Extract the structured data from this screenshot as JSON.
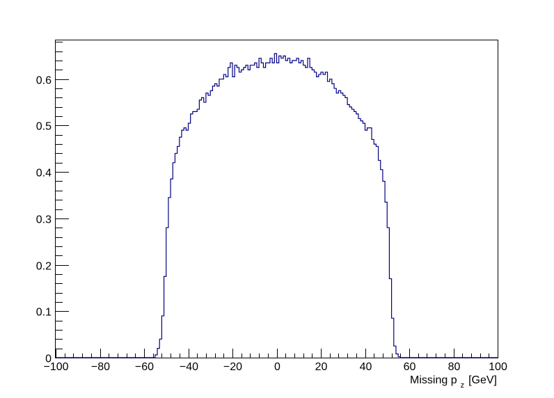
{
  "chart_data": {
    "type": "histogram",
    "title": "",
    "xlabel": {
      "main": "Missing p",
      "subscript": "z",
      "unit": "[GeV]"
    },
    "ylabel": "",
    "xlim": [
      -100,
      100
    ],
    "ylim": [
      0,
      0.685
    ],
    "x_major_ticks": [
      -100,
      -80,
      -60,
      -40,
      -20,
      0,
      20,
      40,
      60,
      80,
      100
    ],
    "x_tick_labels": [
      "−100",
      "−80",
      "−60",
      "−40",
      "−20",
      "0",
      "20",
      "40",
      "60",
      "80",
      "100"
    ],
    "x_minor_step": 4,
    "y_major_ticks": [
      0,
      0.1,
      0.2,
      0.3,
      0.4,
      0.5,
      0.6
    ],
    "y_tick_labels": [
      "0",
      "0.1",
      "0.2",
      "0.3",
      "0.4",
      "0.5",
      "0.6"
    ],
    "y_minor_step": 0.02,
    "grid": false,
    "legend": "none",
    "line_color": "#000080",
    "bin_width": 1,
    "bins_x_low": [
      -55,
      -54,
      -53,
      -52,
      -51,
      -50,
      -49,
      -48,
      -47,
      -46,
      -45,
      -44,
      -43,
      -42,
      -41,
      -40,
      -39,
      -38,
      -37,
      -36,
      -35,
      -34,
      -33,
      -32,
      -31,
      -30,
      -29,
      -28,
      -27,
      -26,
      -25,
      -24,
      -23,
      -22,
      -21,
      -20,
      -19,
      -18,
      -17,
      -16,
      -15,
      -14,
      -13,
      -12,
      -11,
      -10,
      -9,
      -8,
      -7,
      -6,
      -5,
      -4,
      -3,
      -2,
      -1,
      0,
      1,
      2,
      3,
      4,
      5,
      6,
      7,
      8,
      9,
      10,
      11,
      12,
      13,
      14,
      15,
      16,
      17,
      18,
      19,
      20,
      21,
      22,
      23,
      24,
      25,
      26,
      27,
      28,
      29,
      30,
      31,
      32,
      33,
      34,
      35,
      36,
      37,
      38,
      39,
      40,
      41,
      42,
      43,
      44,
      45,
      46,
      47,
      48,
      49,
      50,
      51,
      52,
      53,
      54,
      55
    ],
    "values": [
      0.006,
      0.02,
      0.04,
      0.09,
      0.175,
      0.28,
      0.345,
      0.385,
      0.42,
      0.44,
      0.455,
      0.475,
      0.49,
      0.495,
      0.49,
      0.505,
      0.525,
      0.53,
      0.53,
      0.535,
      0.555,
      0.56,
      0.55,
      0.57,
      0.565,
      0.575,
      0.585,
      0.59,
      0.585,
      0.6,
      0.6,
      0.61,
      0.605,
      0.625,
      0.635,
      0.605,
      0.63,
      0.625,
      0.615,
      0.62,
      0.625,
      0.63,
      0.62,
      0.63,
      0.63,
      0.635,
      0.625,
      0.645,
      0.635,
      0.625,
      0.635,
      0.635,
      0.645,
      0.635,
      0.655,
      0.635,
      0.65,
      0.645,
      0.65,
      0.64,
      0.645,
      0.635,
      0.64,
      0.64,
      0.645,
      0.635,
      0.64,
      0.63,
      0.625,
      0.645,
      0.625,
      0.62,
      0.615,
      0.605,
      0.61,
      0.615,
      0.61,
      0.615,
      0.595,
      0.6,
      0.59,
      0.58,
      0.57,
      0.575,
      0.57,
      0.565,
      0.56,
      0.545,
      0.54,
      0.535,
      0.53,
      0.525,
      0.515,
      0.51,
      0.505,
      0.49,
      0.495,
      0.495,
      0.47,
      0.46,
      0.455,
      0.425,
      0.405,
      0.38,
      0.335,
      0.28,
      0.17,
      0.085,
      0.025,
      0.008,
      0.002
    ]
  }
}
